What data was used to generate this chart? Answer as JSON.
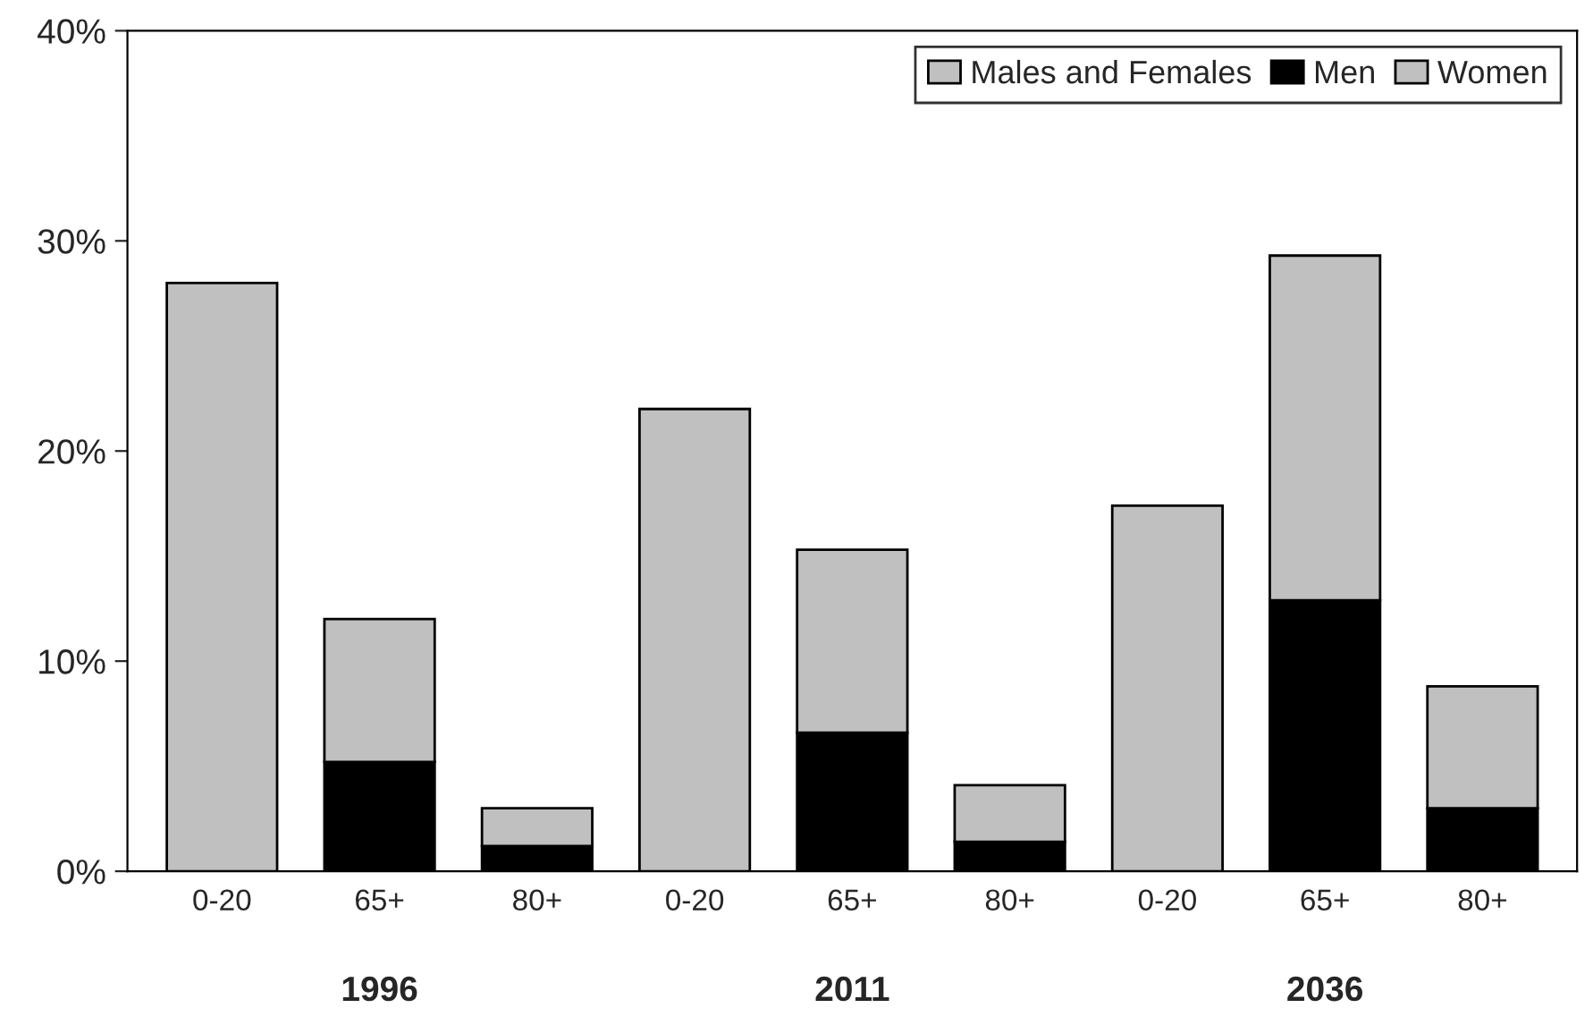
{
  "chart_data": {
    "type": "bar",
    "stacked": true,
    "categories": [
      "0-20",
      "65+",
      "80+",
      "0-20",
      "65+",
      "80+",
      "0-20",
      "65+",
      "80+"
    ],
    "series": [
      {
        "name": "Males and Females",
        "color": "#c0c0c0",
        "values": [
          28,
          null,
          null,
          22,
          null,
          null,
          17.4,
          null,
          null
        ]
      },
      {
        "name": "Men",
        "color": "#000000",
        "values": [
          null,
          5.2,
          1.2,
          null,
          6.6,
          1.4,
          null,
          12.9,
          3
        ]
      },
      {
        "name": "Women",
        "color": "#c0c0c0",
        "values": [
          null,
          6.8,
          1.8,
          null,
          8.7,
          2.7,
          null,
          16.4,
          5.8
        ]
      }
    ],
    "annotations": [
      "1996",
      "2011",
      "2036"
    ],
    "ylim": [
      0,
      40
    ],
    "yticks": [
      {
        "value": 0,
        "label": "0%"
      },
      {
        "value": 10,
        "label": "10%"
      },
      {
        "value": 20,
        "label": "20%"
      },
      {
        "value": 30,
        "label": "30%"
      },
      {
        "value": 40,
        "label": "40%"
      }
    ],
    "grid": false,
    "legend": "top right"
  }
}
